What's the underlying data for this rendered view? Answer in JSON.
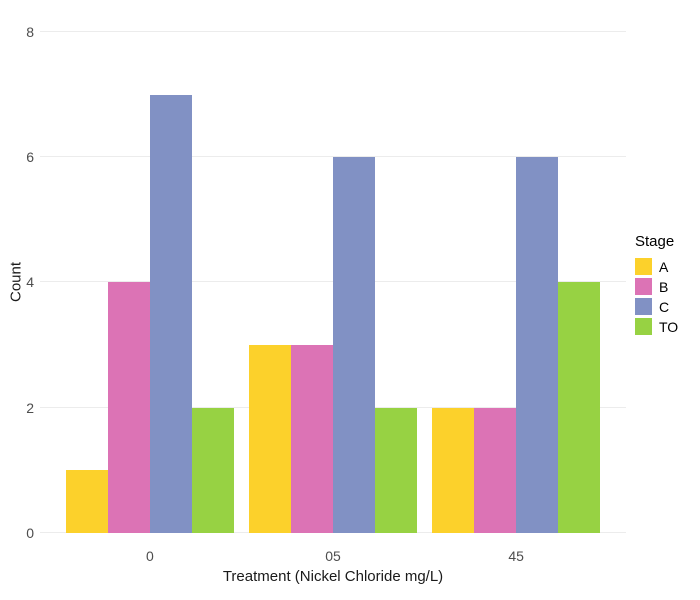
{
  "chart_data": {
    "type": "bar",
    "title": "",
    "xlabel": "Treatment (Nickel Chloride mg/L)",
    "ylabel": "Count",
    "categories": [
      "0",
      "05",
      "45"
    ],
    "series": [
      {
        "name": "A",
        "color": "#FCD12B",
        "values": [
          1,
          3,
          2
        ]
      },
      {
        "name": "B",
        "color": "#DC73B5",
        "values": [
          4,
          3,
          2
        ]
      },
      {
        "name": "C",
        "color": "#8191C4",
        "values": [
          7,
          6,
          6
        ]
      },
      {
        "name": "TO",
        "color": "#97D243",
        "values": [
          2,
          2,
          4
        ]
      }
    ],
    "y_ticks": [
      0,
      2,
      4,
      6,
      8
    ],
    "ylim": [
      0,
      8.35
    ],
    "grid": "horizontal-major-only",
    "legend": {
      "title": "Stage",
      "position": "right"
    }
  },
  "colors": {
    "background": "#FFFFFF",
    "gridline": "#ECECEC",
    "tick_label": "#4D4D4D",
    "axis_title": "#1A1A1A",
    "legend_text": "#000000"
  }
}
